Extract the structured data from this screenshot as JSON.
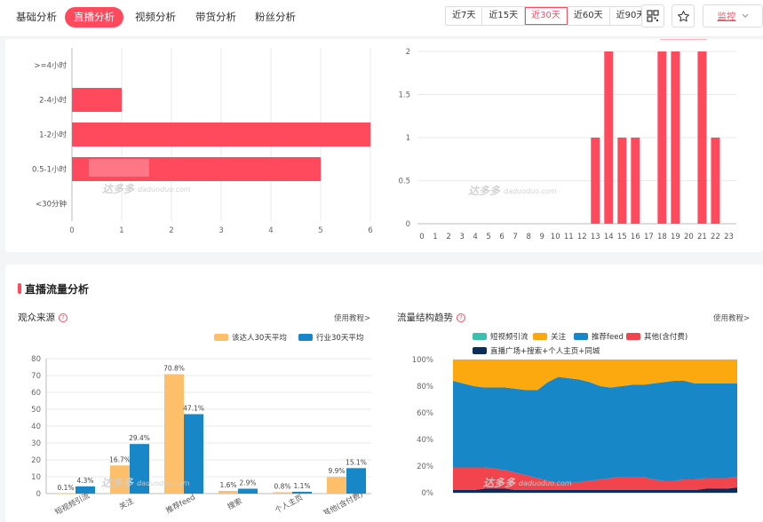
{
  "nav": {
    "tabs": [
      {
        "label": "基础分析",
        "active": false
      },
      {
        "label": "直播分析",
        "active": true
      },
      {
        "label": "视频分析",
        "active": false
      },
      {
        "label": "带货分析",
        "active": false
      },
      {
        "label": "粉丝分析",
        "active": false
      }
    ],
    "ranges": [
      "近7天",
      "近15天",
      "近30天",
      "近60天",
      "近90天"
    ],
    "selected_range": "近30天",
    "monitor_label": "监控",
    "icons": [
      "qrcode-icon",
      "star-icon",
      "chevron-down-icon"
    ]
  },
  "section": {
    "title": "直播流量分析"
  },
  "panels": {
    "audience": {
      "title": "观众来源",
      "tutorial": "使用教程>"
    },
    "flow": {
      "title": "流量结构趋势",
      "tutorial": "使用教程>"
    }
  },
  "watermark": {
    "brand": "达多多",
    "domain": "daduoduo.com"
  },
  "colors": {
    "accent": "#ff4a5e",
    "talent": "#fdbf6a",
    "industry": "#1787c8"
  },
  "chart_data": [
    {
      "type": "bar",
      "orientation": "horizontal",
      "categories": [
        ">=4小时",
        "2-4小时",
        "1-2小时",
        "0.5-1小时",
        "<30分钟"
      ],
      "values": [
        0,
        1,
        6,
        5,
        0
      ],
      "xlim": [
        0,
        6
      ],
      "xticks": [
        "0",
        "1",
        "2",
        "3",
        "4",
        "5",
        "6"
      ],
      "grid": true
    },
    {
      "type": "bar",
      "categories": [
        "0",
        "1",
        "2",
        "3",
        "4",
        "5",
        "6",
        "7",
        "8",
        "9",
        "10",
        "11",
        "12",
        "13",
        "14",
        "15",
        "16",
        "17",
        "18",
        "19",
        "20",
        "21",
        "22",
        "23"
      ],
      "values": [
        0,
        0,
        0,
        0,
        0,
        0,
        0,
        0,
        0,
        0,
        0,
        0,
        0,
        1,
        2,
        1,
        1,
        0,
        2,
        2,
        0,
        2,
        1,
        0
      ],
      "ylim": [
        0,
        2
      ],
      "yticks": [
        "0",
        "0.5",
        "1",
        "1.5",
        "2"
      ],
      "grid": true
    },
    {
      "type": "bar",
      "categories": [
        "短视频引流",
        "关注",
        "推荐feed",
        "搜索",
        "个人主页",
        "其他(含付费)"
      ],
      "series": [
        {
          "name": "该达人30天平均",
          "values": [
            0.1,
            16.7,
            70.8,
            1.6,
            0.8,
            9.9
          ],
          "labels": [
            "0.1%",
            "16.7%",
            "70.8%",
            "1.6%",
            "0.8%",
            "9.9%"
          ]
        },
        {
          "name": "行业30天平均",
          "values": [
            4.3,
            29.4,
            47.1,
            2.9,
            1.1,
            15.1
          ],
          "labels": [
            "4.3%",
            "29.4%",
            "47.1%",
            "2.9%",
            "1.1%",
            "15.1%"
          ]
        }
      ],
      "ylim": [
        0,
        80
      ],
      "yticks": [
        "0",
        "10",
        "20",
        "30",
        "40",
        "50",
        "60",
        "70",
        "80"
      ],
      "legend": "top-right",
      "grid": true
    },
    {
      "type": "area",
      "stacked": "percent",
      "legend": "top",
      "yticks": [
        "0%",
        "20%",
        "40%",
        "60%",
        "80%",
        "100%"
      ],
      "ylim": [
        0,
        100
      ],
      "series": [
        {
          "name": "直播广场+搜索+个人主页+同城",
          "color": "#0c2d5a",
          "values": [
            2,
            2,
            2,
            3,
            3,
            3,
            2,
            2,
            2,
            2,
            2,
            2,
            2,
            2,
            2,
            2,
            2,
            2,
            2,
            2,
            2,
            2,
            2,
            2,
            3,
            3,
            3,
            4
          ]
        },
        {
          "name": "短视频引流",
          "color": "#3dbfae",
          "values": [
            0,
            0,
            0,
            0,
            0,
            0,
            0,
            0,
            0,
            0,
            0,
            0,
            0,
            0,
            0,
            0,
            0,
            0,
            0,
            0,
            0,
            0,
            0,
            0,
            0,
            0,
            0,
            0
          ]
        },
        {
          "name": "其他(含付费)",
          "color": "#f2444c",
          "values": [
            17,
            17,
            17,
            16,
            15,
            14,
            13,
            11,
            9,
            7,
            5,
            5,
            6,
            7,
            8,
            9,
            10,
            10,
            10,
            8,
            7,
            7,
            8,
            8,
            8,
            8,
            8,
            8
          ]
        },
        {
          "name": "推荐feed",
          "color": "#1787c8",
          "values": [
            65,
            63,
            61,
            60,
            61,
            62,
            63,
            64,
            66,
            74,
            80,
            79,
            77,
            74,
            70,
            68,
            68,
            69,
            69,
            72,
            74,
            75,
            74,
            72,
            71,
            71,
            71,
            70
          ]
        },
        {
          "name": "关注",
          "color": "#fca90f",
          "values": [
            16,
            18,
            20,
            21,
            21,
            21,
            22,
            23,
            23,
            17,
            13,
            14,
            15,
            17,
            20,
            21,
            20,
            19,
            19,
            18,
            17,
            16,
            16,
            18,
            18,
            18,
            18,
            18
          ]
        }
      ]
    }
  ]
}
